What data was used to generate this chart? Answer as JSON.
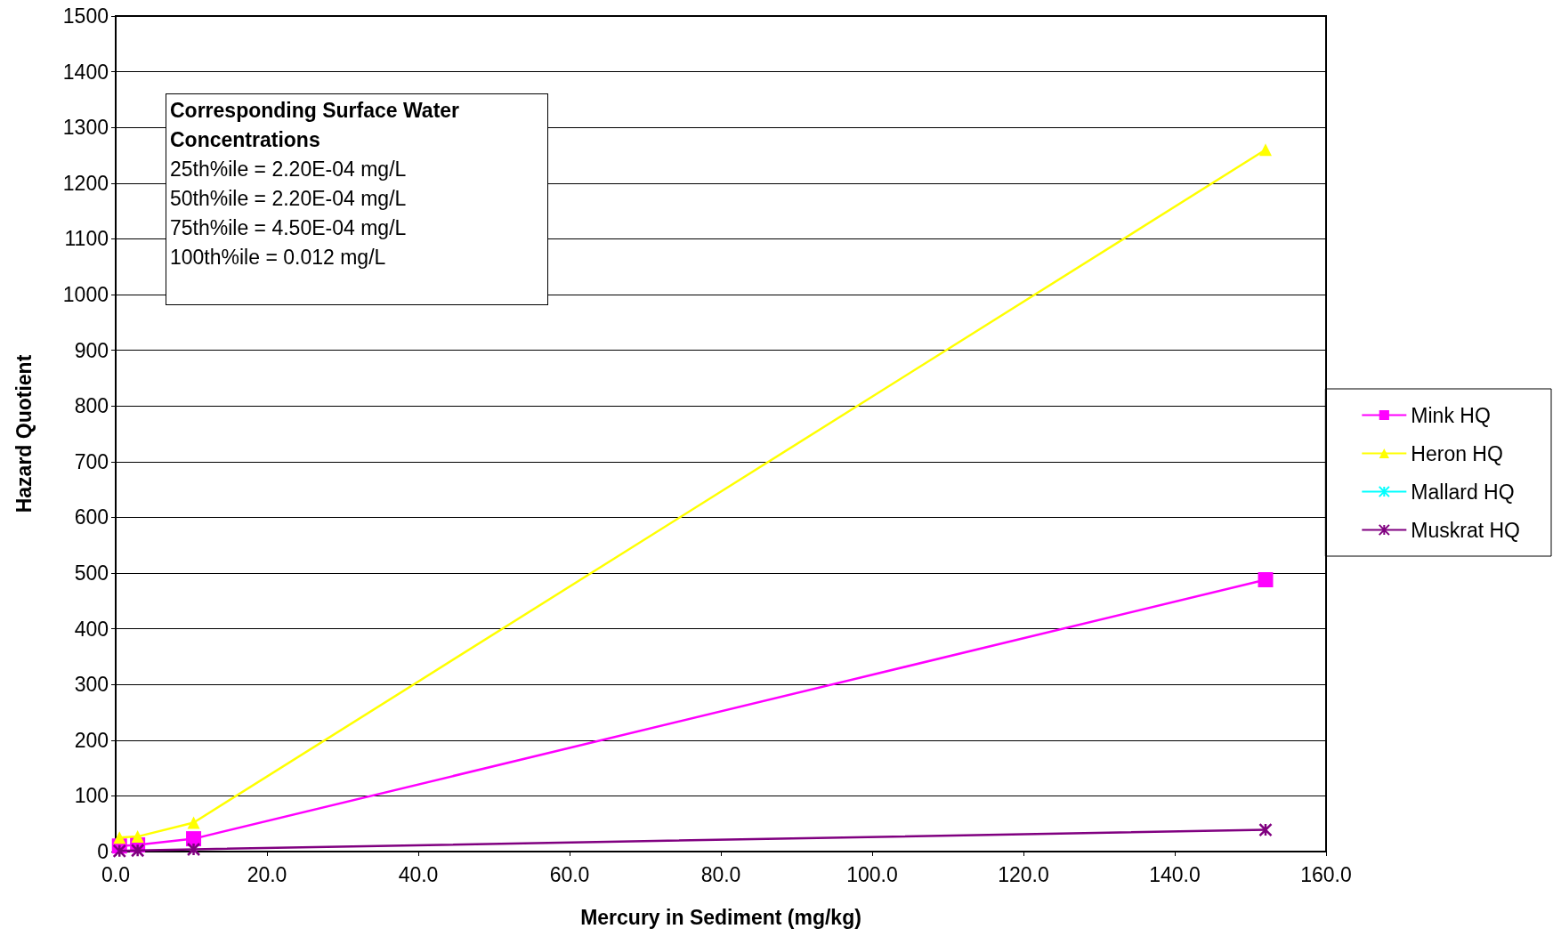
{
  "chart_data": {
    "type": "line",
    "xlabel": "Mercury in Sediment (mg/kg)",
    "ylabel": "Hazard Quotient",
    "x": [
      0.5,
      2.9,
      10.3,
      152
    ],
    "series": [
      {
        "name": "Mink HQ",
        "color": "#ff00ff",
        "marker": "square",
        "values": [
          10,
          12,
          23,
          488
        ]
      },
      {
        "name": "Heron HQ",
        "color": "#ffff00",
        "marker": "triangle",
        "values": [
          25,
          27,
          52,
          1260
        ]
      },
      {
        "name": "Mallard HQ",
        "color": "#00ffff",
        "marker": "cross",
        "values": [
          null,
          null,
          null,
          null
        ]
      },
      {
        "name": "Muskrat HQ",
        "color": "#800080",
        "marker": "cross",
        "values": [
          1,
          2,
          4,
          39
        ]
      }
    ],
    "xlim": [
      0,
      160
    ],
    "xticks": [
      {
        "value": 0,
        "label": "0.0"
      },
      {
        "value": 20,
        "label": "20.0"
      },
      {
        "value": 40,
        "label": "40.0"
      },
      {
        "value": 60,
        "label": "60.0"
      },
      {
        "value": 80,
        "label": "80.0"
      },
      {
        "value": 100,
        "label": "100.0"
      },
      {
        "value": 120,
        "label": "120.0"
      },
      {
        "value": 140,
        "label": "140.0"
      },
      {
        "value": 160,
        "label": "160.0"
      }
    ],
    "ylim": [
      0,
      1500
    ],
    "yticks": [
      0,
      100,
      200,
      300,
      400,
      500,
      600,
      700,
      800,
      900,
      1000,
      1100,
      1200,
      1300,
      1400,
      1500
    ],
    "grid": "y",
    "legend": "right",
    "line_style": "solid",
    "annotations": [
      "Corresponding Surface Water Concentrations",
      "25th%ile = 2.20E-04 mg/L",
      "50th%ile = 2.20E-04 mg/L",
      "75th%ile = 4.50E-04 mg/L",
      "100th%ile = 0.012 mg/L"
    ]
  }
}
